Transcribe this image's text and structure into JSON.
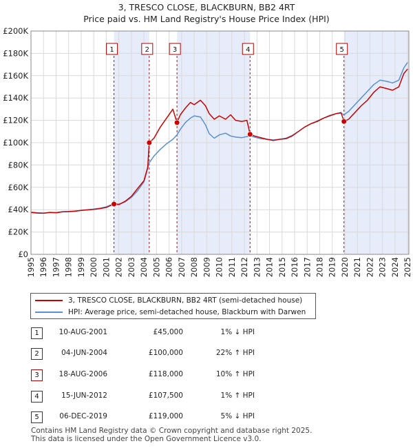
{
  "title": "3, TRESCO CLOSE, BLACKBURN, BB2 4RT",
  "subtitle": "Price paid vs. HM Land Registry's House Price Index (HPI)",
  "legend": {
    "property": "3, TRESCO CLOSE, BLACKBURN, BB2 4RT (semi-detached house)",
    "hpi": "HPI: Average price, semi-detached house, Blackburn with Darwen"
  },
  "transactions": [
    {
      "num": "1",
      "date": "10-AUG-2001",
      "price": "£45,000",
      "hpi": "1% ↓ HPI"
    },
    {
      "num": "2",
      "date": "04-JUN-2004",
      "price": "£100,000",
      "hpi": "22% ↑ HPI"
    },
    {
      "num": "3",
      "date": "18-AUG-2006",
      "price": "£118,000",
      "hpi": "10% ↑ HPI"
    },
    {
      "num": "4",
      "date": "15-JUN-2012",
      "price": "£107,500",
      "hpi": "1% ↑ HPI"
    },
    {
      "num": "5",
      "date": "06-DEC-2019",
      "price": "£119,000",
      "hpi": "5% ↓ HPI"
    }
  ],
  "footer": {
    "line1": "Contains HM Land Registry data © Crown copyright and database right 2025.",
    "line2": "This data is licensed under the Open Government Licence v3.0."
  },
  "colors": {
    "property": "#cc0000",
    "hpi": "#5b8fd0",
    "band": "#e6ecf9",
    "marker_box": "#b00000"
  },
  "chart_data": {
    "type": "line",
    "xlim": [
      1995,
      2025.1
    ],
    "ylim": [
      0,
      200000
    ],
    "xticks": [
      1995,
      1996,
      1997,
      1998,
      1999,
      2000,
      2001,
      2002,
      2003,
      2004,
      2005,
      2006,
      2007,
      2008,
      2009,
      2010,
      2011,
      2012,
      2013,
      2014,
      2015,
      2016,
      2017,
      2018,
      2019,
      2020,
      2021,
      2022,
      2023,
      2024,
      2025
    ],
    "yticks": [
      {
        "v": 0,
        "label": "£0"
      },
      {
        "v": 20000,
        "label": "£20K"
      },
      {
        "v": 40000,
        "label": "£40K"
      },
      {
        "v": 60000,
        "label": "£60K"
      },
      {
        "v": 80000,
        "label": "£80K"
      },
      {
        "v": 100000,
        "label": "£100K"
      },
      {
        "v": 120000,
        "label": "£120K"
      },
      {
        "v": 140000,
        "label": "£140K"
      },
      {
        "v": 160000,
        "label": "£160K"
      },
      {
        "v": 180000,
        "label": "£180K"
      },
      {
        "v": 200000,
        "label": "£200K"
      }
    ],
    "grid": true,
    "legend_position": "below",
    "bands": [
      [
        2001.61,
        2004.42
      ],
      [
        2006.63,
        2012.45
      ],
      [
        2019.93,
        2025.1
      ]
    ],
    "sales": [
      {
        "label": "1",
        "x": 2001.61,
        "y": 45000
      },
      {
        "label": "2",
        "x": 2004.42,
        "y": 100000
      },
      {
        "label": "3",
        "x": 2006.63,
        "y": 118000
      },
      {
        "label": "4",
        "x": 2012.45,
        "y": 107500
      },
      {
        "label": "5",
        "x": 2019.93,
        "y": 119000
      }
    ],
    "series": [
      {
        "name": "3, TRESCO CLOSE, BLACKBURN, BB2 4RT (semi-detached house)",
        "key": "property",
        "points": [
          [
            1995.0,
            37500
          ],
          [
            1995.5,
            37000
          ],
          [
            1996.0,
            36800
          ],
          [
            1996.5,
            37500
          ],
          [
            1997.0,
            37200
          ],
          [
            1997.5,
            38000
          ],
          [
            1998.0,
            38200
          ],
          [
            1998.5,
            38600
          ],
          [
            1999.0,
            39300
          ],
          [
            1999.5,
            39800
          ],
          [
            2000.0,
            40300
          ],
          [
            2000.5,
            41000
          ],
          [
            2001.0,
            42000
          ],
          [
            2001.61,
            45000
          ],
          [
            2002.0,
            44500
          ],
          [
            2002.5,
            47500
          ],
          [
            2003.0,
            52000
          ],
          [
            2003.5,
            59000
          ],
          [
            2004.0,
            66000
          ],
          [
            2004.3,
            78000
          ],
          [
            2004.42,
            100000
          ],
          [
            2004.8,
            104000
          ],
          [
            2005.3,
            114000
          ],
          [
            2005.8,
            122000
          ],
          [
            2006.3,
            130000
          ],
          [
            2006.63,
            118000
          ],
          [
            2006.9,
            125000
          ],
          [
            2007.3,
            131000
          ],
          [
            2007.7,
            136000
          ],
          [
            2008.0,
            134000
          ],
          [
            2008.5,
            138000
          ],
          [
            2008.9,
            133000
          ],
          [
            2009.2,
            126000
          ],
          [
            2009.6,
            121000
          ],
          [
            2010.0,
            124000
          ],
          [
            2010.5,
            121000
          ],
          [
            2010.9,
            125000
          ],
          [
            2011.3,
            120000
          ],
          [
            2011.8,
            119000
          ],
          [
            2012.2,
            120000
          ],
          [
            2012.45,
            107500
          ],
          [
            2012.8,
            106000
          ],
          [
            2013.3,
            104500
          ],
          [
            2013.8,
            103000
          ],
          [
            2014.3,
            102000
          ],
          [
            2014.8,
            103000
          ],
          [
            2015.3,
            103500
          ],
          [
            2015.8,
            106000
          ],
          [
            2016.3,
            110000
          ],
          [
            2016.8,
            114000
          ],
          [
            2017.3,
            117000
          ],
          [
            2017.8,
            119000
          ],
          [
            2018.3,
            122000
          ],
          [
            2018.8,
            124000
          ],
          [
            2019.3,
            126000
          ],
          [
            2019.7,
            127000
          ],
          [
            2019.93,
            119000
          ],
          [
            2020.3,
            121000
          ],
          [
            2020.8,
            127000
          ],
          [
            2021.3,
            133000
          ],
          [
            2021.8,
            138000
          ],
          [
            2022.3,
            145000
          ],
          [
            2022.8,
            150000
          ],
          [
            2023.3,
            148500
          ],
          [
            2023.8,
            147000
          ],
          [
            2024.3,
            150000
          ],
          [
            2024.7,
            162000
          ],
          [
            2025.0,
            166000
          ]
        ]
      },
      {
        "name": "HPI: Average price, semi-detached house, Blackburn with Darwen",
        "key": "hpi",
        "points": [
          [
            1995.0,
            37800
          ],
          [
            1995.5,
            37300
          ],
          [
            1996.0,
            37000
          ],
          [
            1996.5,
            37600
          ],
          [
            1997.0,
            37400
          ],
          [
            1997.5,
            38200
          ],
          [
            1998.0,
            38400
          ],
          [
            1998.5,
            38800
          ],
          [
            1999.0,
            39400
          ],
          [
            1999.5,
            39900
          ],
          [
            2000.0,
            40500
          ],
          [
            2000.5,
            41300
          ],
          [
            2001.0,
            42500
          ],
          [
            2001.61,
            45500
          ],
          [
            2002.0,
            45000
          ],
          [
            2002.5,
            47000
          ],
          [
            2003.0,
            51000
          ],
          [
            2003.5,
            57000
          ],
          [
            2004.0,
            65000
          ],
          [
            2004.42,
            82000
          ],
          [
            2004.8,
            88000
          ],
          [
            2005.3,
            94000
          ],
          [
            2005.8,
            99000
          ],
          [
            2006.3,
            103000
          ],
          [
            2006.63,
            107000
          ],
          [
            2006.9,
            112000
          ],
          [
            2007.3,
            118000
          ],
          [
            2007.7,
            122000
          ],
          [
            2008.0,
            124000
          ],
          [
            2008.5,
            123000
          ],
          [
            2008.9,
            116000
          ],
          [
            2009.2,
            108000
          ],
          [
            2009.6,
            104000
          ],
          [
            2010.0,
            107000
          ],
          [
            2010.5,
            108500
          ],
          [
            2010.9,
            106000
          ],
          [
            2011.3,
            105000
          ],
          [
            2011.8,
            104500
          ],
          [
            2012.2,
            105500
          ],
          [
            2012.45,
            106000
          ],
          [
            2012.8,
            105000
          ],
          [
            2013.3,
            103500
          ],
          [
            2013.8,
            103000
          ],
          [
            2014.3,
            102500
          ],
          [
            2014.8,
            103000
          ],
          [
            2015.3,
            104000
          ],
          [
            2015.8,
            106500
          ],
          [
            2016.3,
            110000
          ],
          [
            2016.8,
            114000
          ],
          [
            2017.3,
            117000
          ],
          [
            2017.8,
            119500
          ],
          [
            2018.3,
            122000
          ],
          [
            2018.8,
            124500
          ],
          [
            2019.3,
            126000
          ],
          [
            2019.7,
            126500
          ],
          [
            2019.93,
            125000
          ],
          [
            2020.3,
            128000
          ],
          [
            2020.8,
            134000
          ],
          [
            2021.3,
            140000
          ],
          [
            2021.8,
            146000
          ],
          [
            2022.3,
            152000
          ],
          [
            2022.8,
            156000
          ],
          [
            2023.3,
            155000
          ],
          [
            2023.8,
            153500
          ],
          [
            2024.3,
            156000
          ],
          [
            2024.7,
            167000
          ],
          [
            2025.0,
            172000
          ]
        ]
      }
    ]
  }
}
